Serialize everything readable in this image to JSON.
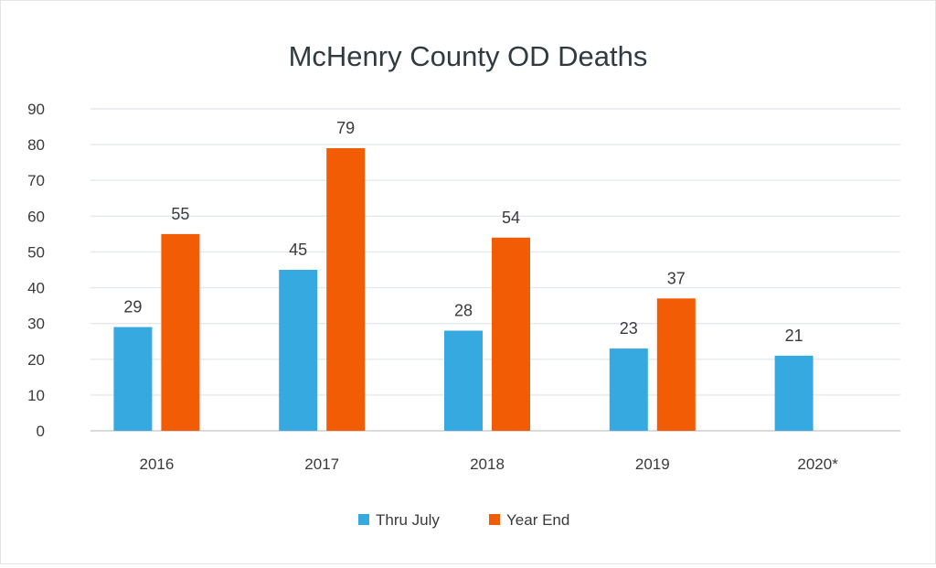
{
  "chart_data": {
    "type": "bar",
    "title": "McHenry  County OD Deaths",
    "categories": [
      "2016",
      "2017",
      "2018",
      "2019",
      "2020*"
    ],
    "series": [
      {
        "name": "Thru July",
        "color": "#36a9e1",
        "values": [
          29,
          45,
          28,
          23,
          21
        ]
      },
      {
        "name": "Year End",
        "color": "#f25c05",
        "values": [
          55,
          79,
          54,
          37,
          null
        ]
      }
    ],
    "ylim": [
      0,
      90
    ],
    "yticks": [
      0,
      10,
      20,
      30,
      40,
      50,
      60,
      70,
      80,
      90
    ],
    "grid": true,
    "data_labels": true,
    "legend": "bottom-center",
    "xlabel": "",
    "ylabel": ""
  }
}
